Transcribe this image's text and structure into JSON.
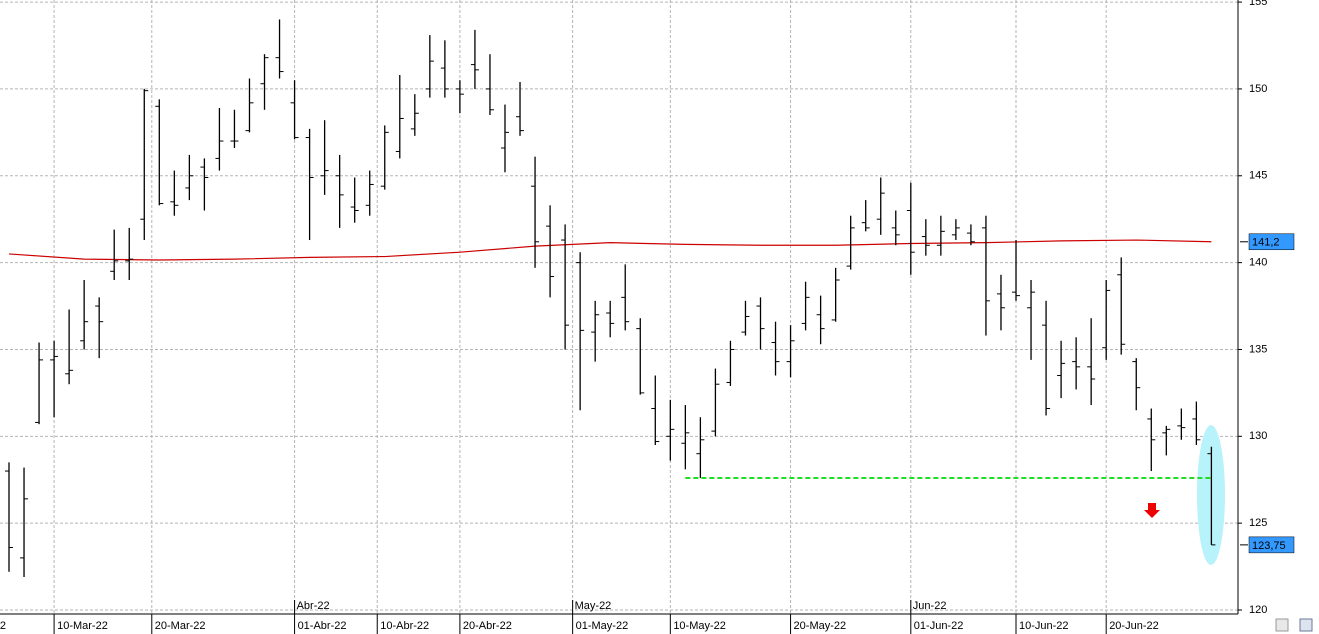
{
  "chart_data": {
    "type": "ohlc",
    "x": [
      "2022-03-07",
      "2022-03-08",
      "2022-03-09",
      "2022-03-10",
      "2022-03-11",
      "2022-03-14",
      "2022-03-15",
      "2022-03-16",
      "2022-03-17",
      "2022-03-18",
      "2022-03-21",
      "2022-03-22",
      "2022-03-23",
      "2022-03-24",
      "2022-03-25",
      "2022-03-28",
      "2022-03-29",
      "2022-03-30",
      "2022-03-31",
      "2022-04-01",
      "2022-04-04",
      "2022-04-05",
      "2022-04-06",
      "2022-04-07",
      "2022-04-08",
      "2022-04-11",
      "2022-04-12",
      "2022-04-13",
      "2022-04-14",
      "2022-04-19",
      "2022-04-20",
      "2022-04-21",
      "2022-04-22",
      "2022-04-25",
      "2022-04-26",
      "2022-04-27",
      "2022-04-28",
      "2022-04-29",
      "2022-05-02",
      "2022-05-03",
      "2022-05-04",
      "2022-05-05",
      "2022-05-06",
      "2022-05-09",
      "2022-05-10",
      "2022-05-11",
      "2022-05-12",
      "2022-05-13",
      "2022-05-16",
      "2022-05-17",
      "2022-05-18",
      "2022-05-19",
      "2022-05-20",
      "2022-05-23",
      "2022-05-24",
      "2022-05-25",
      "2022-05-26",
      "2022-05-27",
      "2022-05-30",
      "2022-05-31",
      "2022-06-01",
      "2022-06-02",
      "2022-06-03",
      "2022-06-06",
      "2022-06-07",
      "2022-06-08",
      "2022-06-09",
      "2022-06-10",
      "2022-06-13",
      "2022-06-14",
      "2022-06-15",
      "2022-06-16",
      "2022-06-17",
      "2022-06-20",
      "2022-06-21",
      "2022-06-22",
      "2022-06-23",
      "2022-06-24",
      "2022-06-27",
      "2022-06-28",
      "2022-06-29"
    ],
    "open": [
      128.0,
      123.0,
      130.8,
      134.4,
      133.6,
      135.5,
      137.5,
      139.5,
      140.1,
      142.5,
      149.0,
      143.5,
      144.3,
      145.5,
      146.0,
      147.0,
      147.6,
      150.3,
      151.8,
      149.2,
      147.2,
      145.0,
      145.0,
      143.2,
      143.3,
      144.4,
      146.4,
      147.7,
      150.0,
      151.2,
      150.0,
      151.4,
      150.0,
      146.6,
      148.4,
      144.4,
      142.1,
      141.3,
      140.0,
      136.0,
      137.1,
      138.0,
      136.2,
      131.6,
      130.0,
      129.6,
      129.0,
      130.3,
      133.1,
      136.0,
      137.5,
      135.4,
      134.3,
      136.5,
      137.0,
      136.7,
      139.8,
      142.3,
      142.5,
      142.0,
      143.0,
      141.5,
      141.0,
      141.6,
      141.7,
      142.0,
      138.2,
      138.3,
      137.4,
      136.4,
      133.5,
      134.3,
      134.0,
      135.1,
      139.3,
      134.3,
      131.0,
      130.2,
      130.6,
      131.0,
      129.0
    ],
    "high": [
      128.5,
      128.2,
      135.4,
      135.5,
      137.3,
      139.0,
      138.0,
      141.9,
      142.0,
      150.0,
      149.4,
      145.3,
      146.2,
      146.0,
      148.9,
      148.8,
      150.6,
      152.0,
      154.0,
      150.5,
      147.7,
      148.2,
      146.2,
      144.9,
      145.3,
      147.9,
      150.8,
      149.7,
      153.1,
      152.8,
      150.5,
      153.4,
      152.0,
      149.1,
      150.4,
      146.1,
      143.3,
      142.2,
      140.6,
      137.8,
      137.8,
      139.9,
      136.8,
      133.5,
      132.1,
      131.8,
      131.1,
      133.9,
      135.5,
      137.8,
      138.0,
      136.6,
      136.4,
      138.9,
      138.1,
      139.7,
      142.7,
      143.6,
      144.9,
      143.0,
      144.6,
      142.5,
      142.7,
      142.5,
      142.2,
      142.7,
      139.3,
      141.3,
      139.0,
      137.8,
      135.5,
      135.7,
      136.8,
      139.0,
      140.3,
      134.5,
      131.6,
      130.6,
      131.6,
      132.0,
      129.4
    ],
    "low": [
      122.2,
      121.9,
      130.7,
      131.1,
      133.0,
      135.0,
      134.5,
      139.0,
      139.0,
      141.3,
      143.3,
      142.7,
      143.6,
      143.0,
      145.3,
      146.6,
      147.5,
      148.8,
      150.6,
      147.1,
      141.3,
      143.9,
      142.0,
      142.3,
      142.7,
      144.2,
      146.0,
      147.3,
      149.5,
      149.5,
      148.6,
      150.0,
      148.5,
      145.2,
      147.3,
      139.7,
      138.0,
      135.0,
      131.5,
      134.3,
      135.7,
      136.1,
      132.4,
      129.5,
      128.6,
      128.1,
      127.6,
      130.0,
      132.9,
      135.8,
      135.0,
      133.5,
      133.4,
      136.1,
      135.3,
      136.6,
      139.6,
      141.8,
      141.6,
      141.0,
      139.3,
      140.4,
      140.4,
      141.3,
      141.0,
      135.8,
      136.1,
      137.8,
      134.4,
      131.2,
      132.2,
      132.7,
      131.8,
      134.4,
      134.7,
      131.5,
      128.0,
      128.9,
      129.8,
      129.5,
      123.75
    ],
    "close": [
      123.6,
      126.4,
      134.4,
      134.6,
      133.8,
      136.6,
      136.6,
      140.1,
      140.2,
      149.9,
      143.4,
      143.3,
      145.0,
      144.9,
      147.0,
      147.0,
      149.2,
      151.8,
      151.0,
      147.2,
      144.9,
      145.3,
      143.9,
      143.0,
      144.5,
      147.5,
      148.3,
      148.6,
      151.6,
      150.0,
      149.7,
      151.1,
      148.8,
      147.5,
      147.6,
      141.2,
      139.2,
      136.4,
      136.1,
      137.0,
      136.5,
      136.6,
      132.5,
      129.7,
      130.4,
      130.2,
      129.8,
      133.0,
      135.0,
      136.9,
      136.2,
      134.3,
      135.5,
      138.0,
      136.2,
      139.0,
      142.0,
      142.0,
      144.0,
      141.6,
      140.6,
      141.0,
      141.8,
      142.0,
      141.2,
      137.8,
      137.4,
      138.1,
      138.3,
      131.6,
      134.2,
      134.0,
      133.3,
      138.4,
      135.3,
      132.8,
      129.8,
      130.4,
      130.5,
      129.8,
      123.75
    ],
    "color": "#000000",
    "moving_average": {
      "color": "#cc0000",
      "x": [
        "2022-03-07",
        "2022-03-14",
        "2022-03-21",
        "2022-03-28",
        "2022-04-04",
        "2022-04-11",
        "2022-04-20",
        "2022-04-27",
        "2022-05-04",
        "2022-05-11",
        "2022-05-18",
        "2022-05-25",
        "2022-06-01",
        "2022-06-08",
        "2022-06-15",
        "2022-06-22",
        "2022-06-29"
      ],
      "values": [
        140.5,
        140.2,
        140.15,
        140.2,
        140.3,
        140.35,
        140.6,
        140.95,
        141.15,
        141.05,
        141.0,
        141.0,
        141.1,
        141.15,
        141.25,
        141.3,
        141.2
      ]
    },
    "support": {
      "value": 127.6,
      "from": "2022-05-11",
      "color": "#22dd22"
    },
    "price_labels": [
      {
        "value": 141.2,
        "label": "141,2"
      },
      {
        "value": 123.75,
        "label": "123,75"
      }
    ],
    "price_label_color": "#3399ff",
    "ylim": [
      119.77,
      155.12
    ],
    "yticks": [
      120,
      125,
      130,
      135,
      140,
      145,
      150,
      155
    ],
    "xticks": [
      {
        "value": "2022-03-10",
        "label": "10-Mar-22"
      },
      {
        "value": "2022-03-20",
        "label": "20-Mar-22"
      },
      {
        "value": "2022-04-01",
        "label": "01-Abr-22"
      },
      {
        "value": "2022-04-10",
        "label": "10-Abr-22"
      },
      {
        "value": "2022-04-20",
        "label": "20-Abr-22"
      },
      {
        "value": "2022-05-01",
        "label": "01-May-22"
      },
      {
        "value": "2022-05-10",
        "label": "10-May-22"
      },
      {
        "value": "2022-05-20",
        "label": "20-May-22"
      },
      {
        "value": "2022-06-01",
        "label": "01-Jun-22"
      },
      {
        "value": "2022-06-10",
        "label": "10-Jun-22"
      },
      {
        "value": "2022-06-20",
        "label": "20-Jun-22"
      }
    ],
    "month_ticks": [
      {
        "value": "2022-04-01",
        "label": "Abr-22"
      },
      {
        "value": "2022-05-01",
        "label": "May-22"
      },
      {
        "value": "2022-06-01",
        "label": "Jun-22"
      }
    ],
    "cut_label": "2",
    "grid": true
  }
}
